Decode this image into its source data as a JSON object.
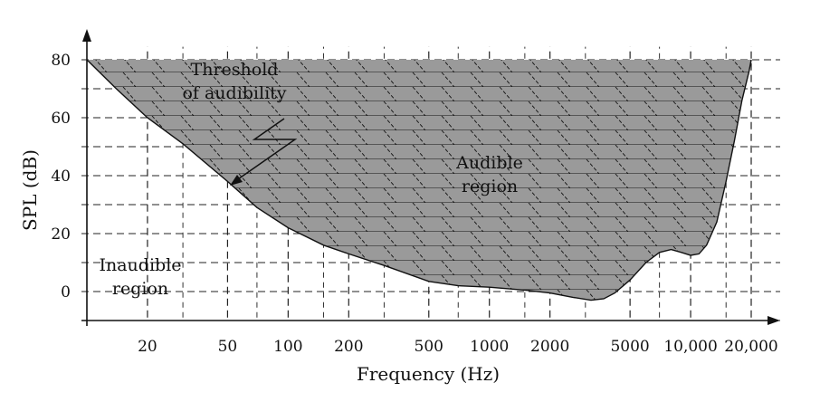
{
  "chart_data": {
    "type": "area",
    "xlabel": "Frequency (Hz)",
    "ylabel": "SPL (dB)",
    "x_scale": "log",
    "xlim": [
      10,
      20000
    ],
    "ylim": [
      -10,
      85
    ],
    "grid": true,
    "x_ticks": [
      {
        "value": 20,
        "label": "20"
      },
      {
        "value": 50,
        "label": "50"
      },
      {
        "value": 100,
        "label": "100"
      },
      {
        "value": 200,
        "label": "200"
      },
      {
        "value": 500,
        "label": "500"
      },
      {
        "value": 1000,
        "label": "1000"
      },
      {
        "value": 2000,
        "label": "2000"
      },
      {
        "value": 5000,
        "label": "5000"
      },
      {
        "value": 10000,
        "label": "10,000"
      },
      {
        "value": 20000,
        "label": "20,000"
      }
    ],
    "y_ticks": [
      {
        "value": 0,
        "label": "0"
      },
      {
        "value": 20,
        "label": "20"
      },
      {
        "value": 40,
        "label": "40"
      },
      {
        "value": 60,
        "label": "60"
      },
      {
        "value": 80,
        "label": "80"
      }
    ],
    "series": [
      {
        "x": [
          10,
          14,
          20,
          30,
          50,
          70,
          100,
          150,
          200,
          300,
          500,
          700,
          1000,
          1500,
          2000,
          2600,
          3200,
          3700,
          4200,
          5000,
          6000,
          7000,
          8000,
          9000,
          10000,
          11000,
          12000,
          13500,
          15000,
          16500,
          18000,
          19500,
          20000
        ],
        "y": [
          80,
          70,
          60,
          51,
          38,
          29,
          22,
          16,
          13,
          9,
          3.5,
          2,
          1.5,
          0.5,
          -0.5,
          -2,
          -3,
          -2.5,
          -0.5,
          4,
          10,
          13.5,
          14.5,
          13.5,
          12.5,
          13,
          16,
          24,
          38,
          52,
          66,
          76,
          80
        ],
        "fill_to": 80,
        "fill_color": "#9a9a9a"
      }
    ],
    "annotations": [
      {
        "text_lines": [
          "Threshold",
          "of audibility"
        ],
        "x": 70,
        "y": 75
      },
      {
        "text_lines": [
          "Audible",
          "region"
        ],
        "x": 1000,
        "y": 40
      },
      {
        "text_lines": [
          "Inaudible",
          "region"
        ],
        "x": 26,
        "y": 7
      }
    ]
  }
}
